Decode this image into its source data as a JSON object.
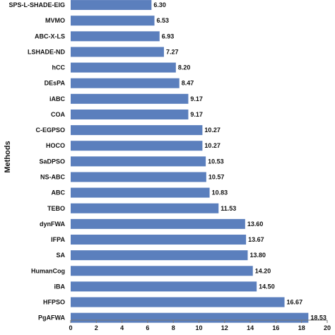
{
  "chart_data": {
    "type": "bar",
    "orientation": "horizontal",
    "ylabel": "Methods",
    "xlabel": "",
    "xlim": [
      0,
      20
    ],
    "xticks": [
      0,
      2,
      4,
      6,
      8,
      10,
      12,
      14,
      16,
      18,
      20
    ],
    "grid": false,
    "bar_color": "#5b7fbd",
    "categories": [
      "SPS-L-SHADE-EIG",
      "MVMO",
      "ABC-X-LS",
      "LSHADE-ND",
      "hCC",
      "DEsPA",
      "iABC",
      "COA",
      "C-EGPSO",
      "HOCO",
      "SaDPSO",
      "NS-ABC",
      "ABC",
      "TEBO",
      "dynFWA",
      "IFPA",
      "SA",
      "HumanCog",
      "iBA",
      "HFPSO",
      "PgAFWA"
    ],
    "values": [
      6.3,
      6.53,
      6.93,
      7.27,
      8.2,
      8.47,
      9.17,
      9.17,
      10.27,
      10.27,
      10.53,
      10.57,
      10.83,
      11.53,
      13.6,
      13.67,
      13.8,
      14.2,
      14.5,
      16.67,
      18.53
    ],
    "value_labels": [
      "6.30",
      "6.53",
      "6.93",
      "7.27",
      "8.20",
      "8.47",
      "9.17",
      "9.17",
      "10.27",
      "10.27",
      "10.53",
      "10.57",
      "10.83",
      "11.53",
      "13.60",
      "13.67",
      "13.80",
      "14.20",
      "14.50",
      "16.67",
      "18.53"
    ]
  }
}
